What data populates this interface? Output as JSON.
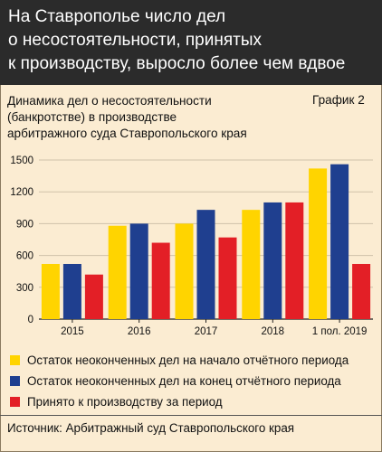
{
  "header": {
    "title_lines": [
      "На Ставрополье число дел",
      "о несостоятельности, принятых",
      "к производству, выросло более чем вдвое"
    ]
  },
  "subtitle_lines": [
    "Динамика дел о несостоятельности",
    "(банкротстве) в производстве",
    "арбитражного суда Ставропольского края"
  ],
  "chart_label": "График 2",
  "source": "Источник: Арбитражный суд Ставропольского края",
  "colors": {
    "background": "#fbecd2",
    "header_bg": "#2b2b2b",
    "series": [
      "#ffd400",
      "#1f3f8f",
      "#e31f26"
    ]
  },
  "chart_data": {
    "type": "bar",
    "categories": [
      "2015",
      "2016",
      "2017",
      "2018",
      "1 пол. 2019"
    ],
    "series": [
      {
        "name": "Остаток неоконченных дел на начало отчётного периода",
        "values": [
          520,
          880,
          900,
          1030,
          1420
        ]
      },
      {
        "name": "Остаток неоконченных дел на конец отчётного периода",
        "values": [
          520,
          900,
          1030,
          1100,
          1460
        ]
      },
      {
        "name": "Принято к производству за период",
        "values": [
          420,
          720,
          770,
          1100,
          520
        ]
      }
    ],
    "y_ticks": [
      "0",
      "300",
      "600",
      "900",
      "1200",
      "1500"
    ],
    "ylim": [
      0,
      1500
    ],
    "grid": true,
    "legend_position": "bottom"
  }
}
